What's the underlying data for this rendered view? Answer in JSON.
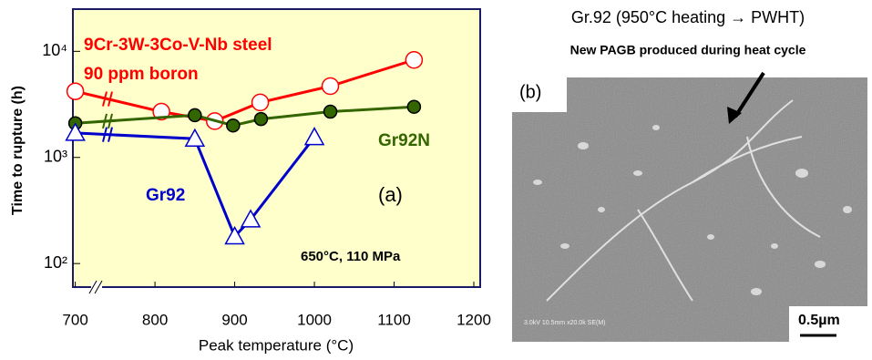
{
  "chart_data": {
    "type": "line",
    "log_y": true,
    "x_label": "Peak temperature (°C)",
    "y_label": "Time to rupture (h)",
    "xlim": [
      697,
      1208
    ],
    "xticks": [
      700,
      800,
      900,
      1000,
      1100,
      1200
    ],
    "ylim": [
      60,
      25000
    ],
    "yticks": [
      {
        "value": 100,
        "label": "10²"
      },
      {
        "value": 1000,
        "label": "10³"
      },
      {
        "value": 10000,
        "label": "10⁴"
      }
    ],
    "background": "#ffffcc",
    "series": [
      {
        "name": "9Cr-3W-3Co-V-Nb steel",
        "subname": "90 ppm boron",
        "color": "#ff0000",
        "marker": "open-circle",
        "x": [
          700,
          808,
          875,
          932,
          1020,
          1125
        ],
        "values": [
          4200,
          2700,
          2200,
          3300,
          4700,
          8300
        ]
      },
      {
        "name": "Gr92N",
        "color": "#336600",
        "marker": "filled-circle",
        "x": [
          700,
          850,
          898,
          933,
          1020,
          1125
        ],
        "values": [
          2100,
          2500,
          2000,
          2300,
          2700,
          3000
        ]
      },
      {
        "name": "Gr92",
        "color": "#0000cc",
        "marker": "open-triangle",
        "x": [
          700,
          850,
          900,
          920,
          1000
        ],
        "values": [
          1700,
          1500,
          180,
          260,
          1550
        ]
      }
    ],
    "annotations": [
      "(a)",
      "650°C, 110 MPa"
    ]
  },
  "micrograph": {
    "title": "Gr.92 (950°C heating → PWHT)",
    "caption": "New PAGB produced during heat cycle",
    "label": "(b)",
    "scale_bar": "0.5µm",
    "sem_info": "3.0kV 10.5mm x20.0k SE(M)"
  }
}
